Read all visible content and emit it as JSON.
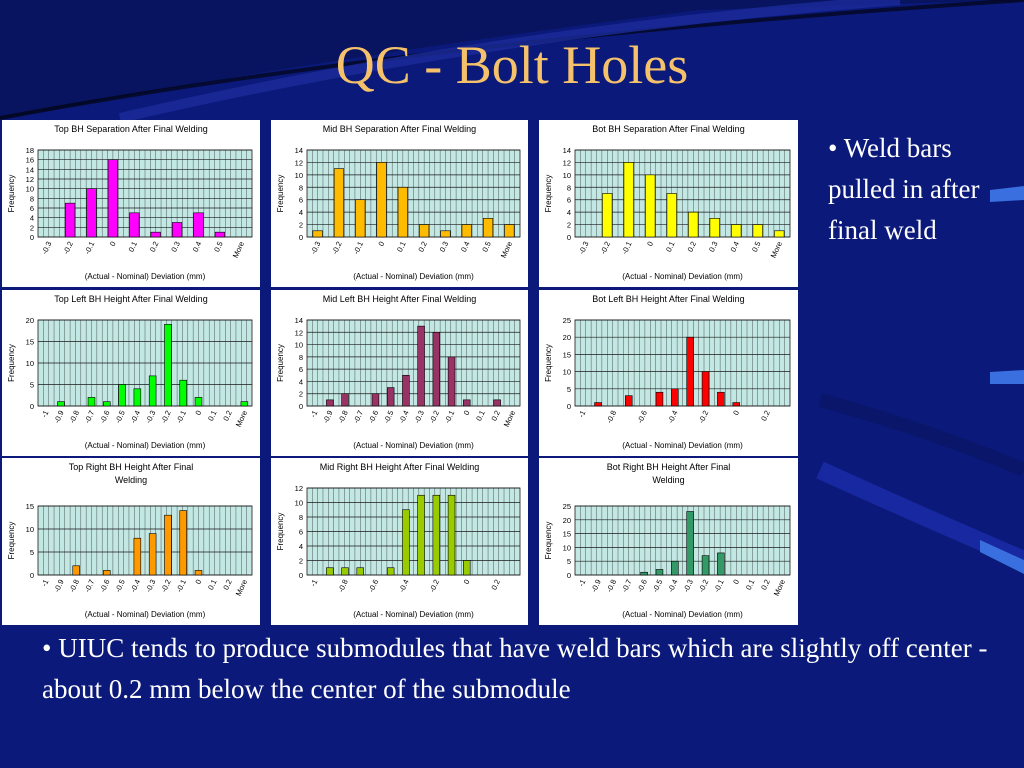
{
  "slide": {
    "title": "QC - Bolt Holes",
    "side_note": "• Weld bars pulled in after final weld",
    "bottom_note": "• UIUC tends to produce submodules that have weld bars which are slightly off center - about 0.2 mm below the center of the submodule"
  },
  "colors": {
    "background": "#0b1a7a",
    "title": "#f5c26b",
    "plot_bg": "#c3e8e4",
    "grid": "#1a1a1a"
  },
  "chart_data": [
    {
      "type": "bar",
      "title": "Top BH Separation After Final Welding",
      "xlabel": "(Actual - Nominal) Deviation (mm)",
      "ylabel": "Frequency",
      "categories": [
        "-0.3",
        "-0.2",
        "-0.1",
        "0",
        "0.1",
        "0.2",
        "0.3",
        "0.4",
        "0.5",
        "More"
      ],
      "ylim": [
        0,
        18
      ],
      "yticks": [
        0,
        2,
        4,
        6,
        8,
        10,
        12,
        14,
        16,
        18
      ],
      "color": "#ff00ff",
      "series": [
        {
          "values": [
            0,
            7,
            10,
            16,
            5,
            1,
            3,
            5,
            1,
            0
          ]
        }
      ]
    },
    {
      "type": "bar",
      "title": "Mid BH Separation After Final Welding",
      "xlabel": "(Actual - Nominal) Deviation (mm)",
      "ylabel": "Frequency",
      "categories": [
        "-0.3",
        "-0.2",
        "-0.1",
        "0",
        "0.1",
        "0.2",
        "0.3",
        "0.4",
        "0.5",
        "More"
      ],
      "ylim": [
        0,
        14
      ],
      "yticks": [
        0,
        2,
        4,
        6,
        8,
        10,
        12,
        14
      ],
      "color": "#ffbb00",
      "series": [
        {
          "values": [
            1,
            11,
            6,
            12,
            8,
            2,
            1,
            2,
            3,
            2
          ]
        }
      ]
    },
    {
      "type": "bar",
      "title": "Bot BH Separation After Final Welding",
      "xlabel": "(Actual - Nominal) Deviation (mm)",
      "ylabel": "Frequency",
      "categories": [
        "-0.3",
        "-0.2",
        "-0.1",
        "0",
        "0.1",
        "0.2",
        "0.3",
        "0.4",
        "0.5",
        "More"
      ],
      "ylim": [
        0,
        14
      ],
      "yticks": [
        0,
        2,
        4,
        6,
        8,
        10,
        12,
        14
      ],
      "color": "#ffff00",
      "series": [
        {
          "values": [
            0,
            7,
            12,
            10,
            7,
            4,
            3,
            2,
            2,
            1
          ]
        }
      ]
    },
    {
      "type": "bar",
      "title": "Top Left BH Height After Final Welding",
      "xlabel": "(Actual - Nominal) Deviation (mm)",
      "ylabel": "Frequency",
      "categories": [
        "-1",
        "-0.9",
        "-0.8",
        "-0.7",
        "-0.6",
        "-0.5",
        "-0.4",
        "-0.3",
        "-0.2",
        "-0.1",
        "0",
        "0.1",
        "0.2",
        "More"
      ],
      "ylim": [
        0,
        20
      ],
      "yticks": [
        0,
        5,
        10,
        15,
        20
      ],
      "color": "#00ff00",
      "series": [
        {
          "values": [
            0,
            1,
            0,
            2,
            1,
            5,
            4,
            7,
            19,
            6,
            2,
            0,
            0,
            1
          ]
        }
      ]
    },
    {
      "type": "bar",
      "title": "Mid Left BH Height After Final Welding",
      "xlabel": "(Actual - Nominal) Deviation (mm)",
      "ylabel": "Frequency",
      "categories": [
        "-1",
        "-0.9",
        "-0.8",
        "-0.7",
        "-0.6",
        "-0.5",
        "-0.4",
        "-0.3",
        "-0.2",
        "-0.1",
        "0",
        "0.1",
        "0.2",
        "More"
      ],
      "ylim": [
        0,
        14
      ],
      "yticks": [
        0,
        2,
        4,
        6,
        8,
        10,
        12,
        14
      ],
      "color": "#993366",
      "series": [
        {
          "values": [
            0,
            1,
            2,
            0,
            2,
            3,
            5,
            13,
            12,
            8,
            1,
            0,
            1,
            0
          ]
        }
      ]
    },
    {
      "type": "bar",
      "title": "Bot Left BH Height After Final Welding",
      "xlabel": "(Actual - Nominal) Deviation (mm)",
      "ylabel": "Frequency",
      "categories": [
        "-1",
        "",
        "-0.8",
        "",
        "-0.6",
        "",
        "-0.4",
        "",
        "-0.2",
        "",
        "0",
        "",
        "0.2",
        ""
      ],
      "ylim": [
        0,
        25
      ],
      "yticks": [
        0,
        5,
        10,
        15,
        20,
        25
      ],
      "color": "#ff0000",
      "series": [
        {
          "values": [
            0,
            1,
            0,
            3,
            0,
            4,
            5,
            20,
            10,
            4,
            1,
            0,
            0,
            0
          ]
        }
      ]
    },
    {
      "type": "bar",
      "title": "Top Right BH Height After Final Welding",
      "xlabel": "(Actual - Nominal) Deviation (mm)",
      "ylabel": "Frequency",
      "categories": [
        "-1",
        "-0.9",
        "-0.8",
        "-0.7",
        "-0.6",
        "-0.5",
        "-0.4",
        "-0.3",
        "-0.2",
        "-0.1",
        "0",
        "0.1",
        "0.2",
        "More"
      ],
      "ylim": [
        0,
        15
      ],
      "yticks": [
        0,
        5,
        10,
        15
      ],
      "color": "#ff9900",
      "series": [
        {
          "values": [
            0,
            0,
            2,
            0,
            1,
            0,
            8,
            9,
            13,
            14,
            1,
            0,
            0,
            0
          ]
        }
      ]
    },
    {
      "type": "bar",
      "title": "Mid Right BH Height After Final Welding",
      "xlabel": "(Actual - Nominal) Deviation (mm)",
      "ylabel": "Frequency",
      "categories": [
        "-1",
        "",
        "-0.8",
        "",
        "-0.6",
        "",
        "-0.4",
        "",
        "-0.2",
        "",
        "0",
        "",
        "0.2",
        ""
      ],
      "ylim": [
        0,
        12
      ],
      "yticks": [
        0,
        2,
        4,
        6,
        8,
        10,
        12
      ],
      "color": "#99cc00",
      "series": [
        {
          "values": [
            0,
            1,
            1,
            1,
            0,
            1,
            9,
            11,
            11,
            11,
            2,
            0,
            0,
            0
          ]
        }
      ]
    },
    {
      "type": "bar",
      "title": "Bot Right BH Height After Final Welding",
      "xlabel": "(Actual - Nominal) Deviation (mm)",
      "ylabel": "Frequency",
      "categories": [
        "-1",
        "-0.9",
        "-0.8",
        "-0.7",
        "-0.6",
        "-0.5",
        "-0.4",
        "-0.3",
        "-0.2",
        "-0.1",
        "0",
        "0.1",
        "0.2",
        "More"
      ],
      "ylim": [
        0,
        25
      ],
      "yticks": [
        0,
        5,
        10,
        15,
        20,
        25
      ],
      "color": "#339966",
      "series": [
        {
          "values": [
            0,
            0,
            0,
            0,
            1,
            2,
            5,
            23,
            7,
            8,
            0,
            0,
            0,
            0
          ]
        }
      ]
    }
  ]
}
